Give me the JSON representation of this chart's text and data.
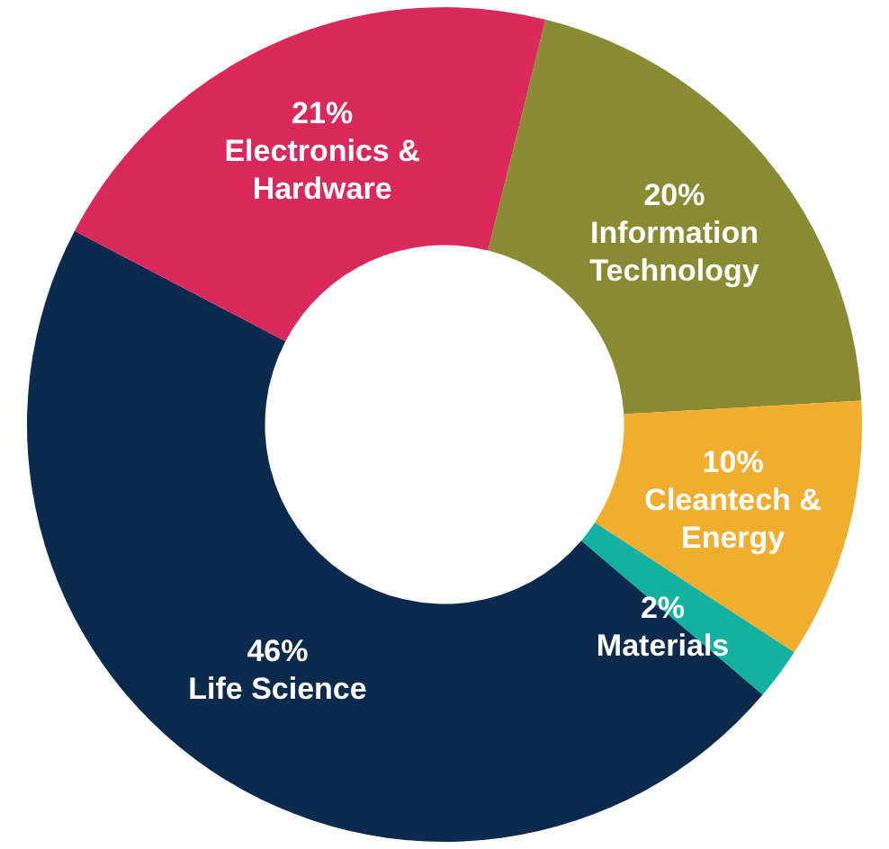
{
  "chart_data": {
    "type": "donut",
    "categories": [
      "Information Technology",
      "Cleantech & Energy",
      "Materials",
      "Life Science",
      "Electronics & Hardware"
    ],
    "values": [
      20,
      10,
      2,
      46,
      21
    ],
    "colors": [
      "#8a8a32",
      "#f0ad2e",
      "#13b2a0",
      "#0c2a4d",
      "#d9285a"
    ],
    "value_labels": [
      "20%",
      "10%",
      "2%",
      "46%",
      "21%"
    ],
    "legend": false
  }
}
